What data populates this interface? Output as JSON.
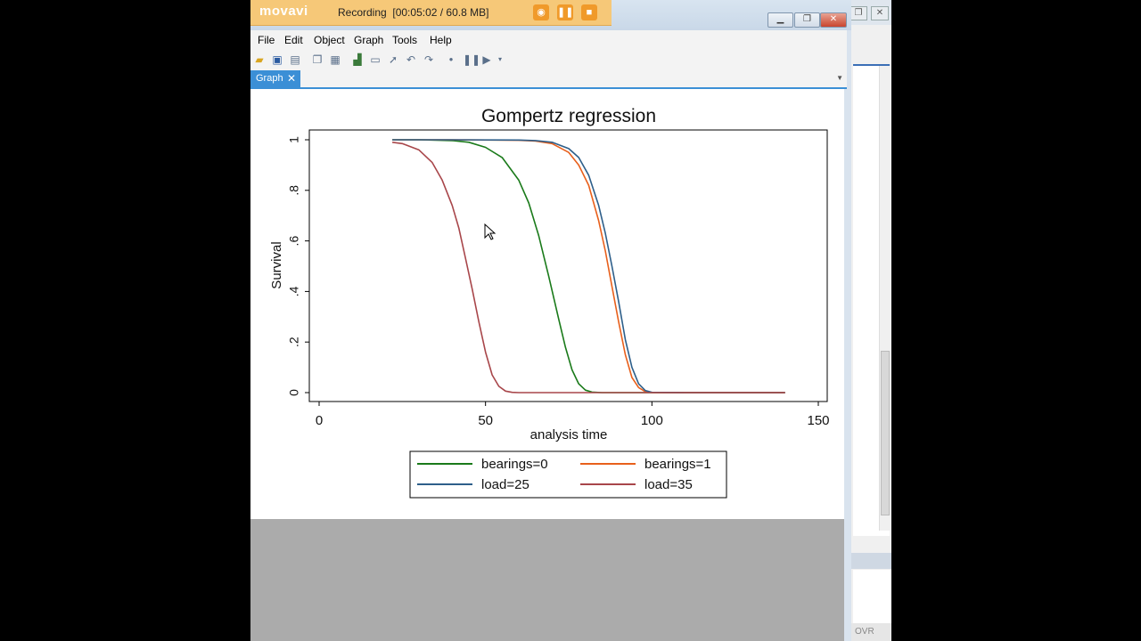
{
  "recorder": {
    "logo": "movavi",
    "status": "Recording",
    "counter": "[00:05:02 / 60.8 MB]"
  },
  "menu": [
    "File",
    "Edit",
    "Object",
    "Graph",
    "Tools",
    "Help"
  ],
  "tab": {
    "label": "Graph",
    "close": "✕"
  },
  "status_bar": {
    "ovr": "OVR"
  },
  "chart_data": {
    "type": "line",
    "title": "Gompertz regression",
    "xlabel": "analysis time",
    "ylabel": "Survival",
    "xlim": [
      0,
      150
    ],
    "ylim": [
      0,
      1
    ],
    "xticks": [
      0,
      50,
      100,
      150
    ],
    "yticks": [
      0,
      0.2,
      0.4,
      0.6,
      0.8,
      1
    ],
    "yticklabels": [
      "0",
      ".2",
      ".4",
      ".6",
      ".8",
      "1"
    ],
    "legend_position": "bottom",
    "series": [
      {
        "name": "bearings=0",
        "color": "#1a7a1a",
        "x": [
          22,
          30,
          40,
          45,
          50,
          55,
          60,
          63,
          66,
          69,
          72,
          74,
          76,
          78,
          80,
          82,
          85,
          90,
          100,
          140
        ],
        "y": [
          1.0,
          1.0,
          0.997,
          0.99,
          0.97,
          0.93,
          0.84,
          0.75,
          0.62,
          0.46,
          0.29,
          0.18,
          0.09,
          0.035,
          0.01,
          0.002,
          0,
          0,
          0,
          0
        ]
      },
      {
        "name": "bearings=1",
        "color": "#e8601c",
        "x": [
          22,
          40,
          60,
          65,
          70,
          75,
          78,
          81,
          84,
          86,
          88,
          90,
          92,
          94,
          96,
          98,
          100,
          110,
          140
        ],
        "y": [
          1.0,
          1.0,
          0.998,
          0.995,
          0.985,
          0.95,
          0.9,
          0.82,
          0.68,
          0.56,
          0.42,
          0.28,
          0.15,
          0.06,
          0.02,
          0.004,
          0,
          0,
          0
        ]
      },
      {
        "name": "load=25",
        "color": "#2e5f8a",
        "x": [
          22,
          40,
          60,
          65,
          70,
          75,
          78,
          81,
          84,
          86,
          88,
          90,
          92,
          94,
          96,
          98,
          100,
          110,
          140
        ],
        "y": [
          1.0,
          1.0,
          0.999,
          0.997,
          0.99,
          0.965,
          0.93,
          0.86,
          0.74,
          0.63,
          0.5,
          0.36,
          0.21,
          0.1,
          0.035,
          0.008,
          0.001,
          0,
          0
        ]
      },
      {
        "name": "load=35",
        "color": "#a8464a",
        "x": [
          22,
          25,
          30,
          34,
          37,
          40,
          42,
          44,
          46,
          48,
          50,
          52,
          54,
          56,
          58,
          60,
          65,
          80,
          140
        ],
        "y": [
          0.99,
          0.985,
          0.96,
          0.91,
          0.84,
          0.74,
          0.65,
          0.53,
          0.41,
          0.28,
          0.16,
          0.07,
          0.025,
          0.006,
          0.001,
          0,
          0,
          0,
          0
        ]
      }
    ]
  }
}
